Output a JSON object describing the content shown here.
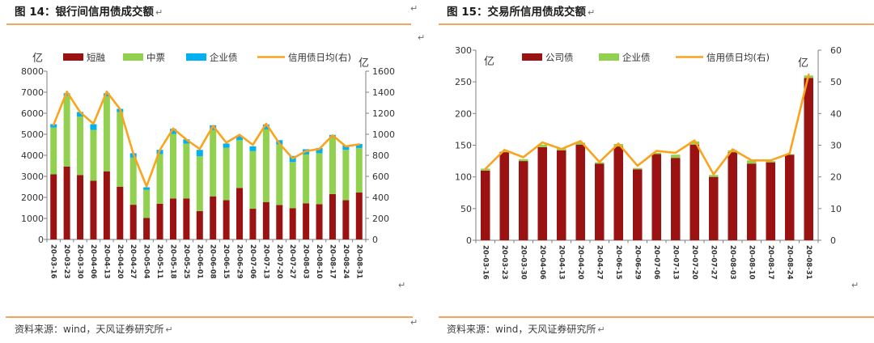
{
  "page": {
    "source_text": "资料来源：wind，天风证券研究所",
    "return_mark": "↵"
  },
  "colors": {
    "rule_orange": "#f6a55f",
    "line_orange": "#faa41e",
    "dark_red": "#9a1212",
    "green": "#92d050",
    "blue": "#00b0f0",
    "axis_gray": "#7f7f7f",
    "text_dark": "#333333"
  },
  "chart_data": [
    {
      "type": "bar",
      "stacked": true,
      "title": "图 14：银行间信用债成交额",
      "unit_left": "亿",
      "unit_right": "亿",
      "legend_position": "top",
      "left_axis": {
        "min": 0,
        "max": 8000,
        "step": 1000
      },
      "right_axis": {
        "min": 0,
        "max": 1600,
        "step": 200
      },
      "categories": [
        "20-03-16",
        "20-03-23",
        "20-03-30",
        "20-04-06",
        "20-04-13",
        "20-04-20",
        "20-04-27",
        "20-05-04",
        "20-05-11",
        "20-05-18",
        "20-05-25",
        "20-06-01",
        "20-06-08",
        "20-06-15",
        "20-06-29",
        "20-07-06",
        "20-07-13",
        "20-07-20",
        "20-07-27",
        "20-08-03",
        "20-08-10",
        "20-08-17",
        "20-08-24",
        "20-08-31"
      ],
      "series": [
        {
          "name": "短融",
          "type": "bar",
          "axis": "left",
          "color": "#9a1212",
          "values": [
            3100,
            3470,
            3060,
            2790,
            3240,
            2510,
            1650,
            1020,
            1700,
            1950,
            1950,
            1350,
            2050,
            1870,
            2450,
            1460,
            1780,
            1640,
            1490,
            1720,
            1680,
            2160,
            1870,
            2230
          ]
        },
        {
          "name": "中票",
          "type": "bar",
          "axis": "left",
          "color": "#92d050",
          "values": [
            2220,
            3360,
            2780,
            2420,
            3560,
            3550,
            2240,
            1340,
            2360,
            3060,
            2610,
            2610,
            3150,
            2490,
            2270,
            2740,
            3450,
            2880,
            2190,
            2320,
            2420,
            2690,
            2390,
            2120
          ]
        },
        {
          "name": "企业债",
          "type": "bar",
          "axis": "left",
          "color": "#00b0f0",
          "values": [
            160,
            120,
            220,
            270,
            150,
            150,
            210,
            120,
            200,
            250,
            200,
            300,
            230,
            200,
            210,
            230,
            240,
            200,
            290,
            250,
            250,
            120,
            220,
            190
          ]
        },
        {
          "name": "信用债日均(右)",
          "type": "line",
          "axis": "right",
          "color": "#faa41e",
          "values": [
            1090,
            1405,
            1210,
            1100,
            1405,
            1240,
            815,
            505,
            850,
            1055,
            950,
            860,
            1080,
            920,
            995,
            900,
            1100,
            912,
            770,
            840,
            860,
            990,
            885,
            905
          ]
        }
      ]
    },
    {
      "type": "bar",
      "stacked": true,
      "title": "图 15：交易所信用债成交额",
      "unit_left": "亿",
      "unit_right": "亿",
      "legend_position": "top",
      "left_axis": {
        "min": 0,
        "max": 300,
        "step": 50
      },
      "right_axis": {
        "min": 0,
        "max": 60,
        "step": 10
      },
      "categories": [
        "20-03-16",
        "20-03-23",
        "20-03-30",
        "20-04-06",
        "20-04-13",
        "20-04-20",
        "20-04-27",
        "20-06-15",
        "20-06-29",
        "20-07-06",
        "20-07-13",
        "20-07-20",
        "20-07-27",
        "20-08-03",
        "20-08-10",
        "20-08-17",
        "20-08-24",
        "20-08-31"
      ],
      "series": [
        {
          "name": "公司债",
          "type": "bar",
          "axis": "left",
          "color": "#9a1212",
          "values": [
            110,
            139,
            125,
            147,
            142,
            151,
            121,
            148,
            112,
            136,
            130,
            151,
            100,
            139,
            121,
            123,
            135,
            256
          ]
        },
        {
          "name": "企业债",
          "type": "bar",
          "axis": "left",
          "color": "#92d050",
          "values": [
            3,
            1,
            3,
            4,
            3,
            3,
            2,
            4,
            2,
            2,
            5,
            5,
            3,
            3,
            5,
            2,
            1,
            4
          ]
        },
        {
          "name": "信用债日均(右)",
          "type": "line",
          "axis": "right",
          "color": "#faa41e",
          "values": [
            22.5,
            28.5,
            26.2,
            30.9,
            28.8,
            31.3,
            24.7,
            30.5,
            23.5,
            28.2,
            27.6,
            31.5,
            20.8,
            28.7,
            25.2,
            25.2,
            27.4,
            52.3
          ]
        }
      ]
    }
  ]
}
